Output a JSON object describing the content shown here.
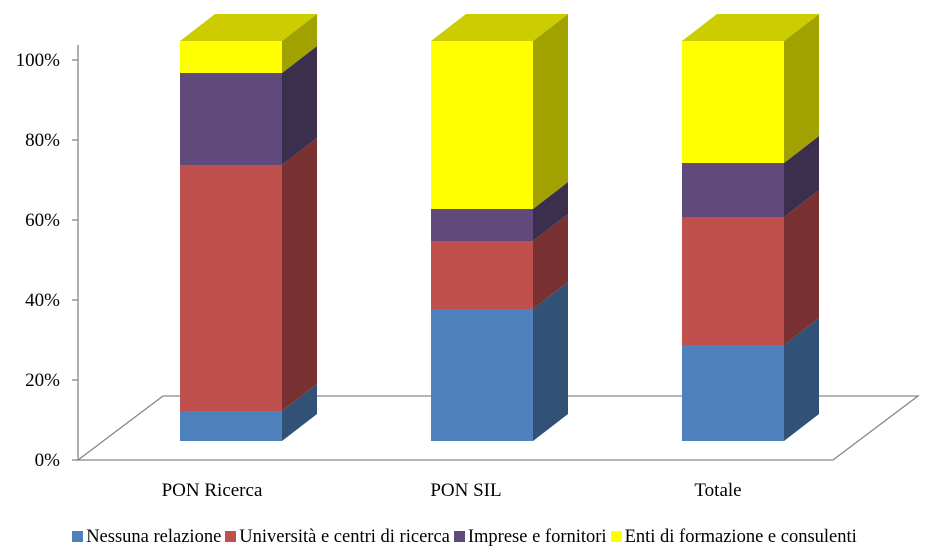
{
  "chart_data": {
    "type": "bar",
    "stacked": true,
    "percent": true,
    "three_d": true,
    "categories": [
      "PON Ricerca",
      "PON SIL",
      "Totale"
    ],
    "series": [
      {
        "name": "Nessuna relazione",
        "color": "#4F81BD",
        "values": [
          7.5,
          33,
          24
        ]
      },
      {
        "name": "Università e centri di ricerca",
        "color": "#C0504D",
        "values": [
          61.5,
          17,
          32
        ]
      },
      {
        "name": "Imprese e fornitori",
        "color": "#604A7B",
        "values": [
          23,
          8,
          13.5
        ]
      },
      {
        "name": "Enti di formazione e consulenti",
        "color": "#FFFF00",
        "values": [
          8,
          42,
          30.5
        ]
      }
    ],
    "y_ticks": [
      "0%",
      "20%",
      "40%",
      "60%",
      "80%",
      "100%"
    ],
    "ylim": [
      0,
      100
    ],
    "grid": false,
    "legend_position": "bottom"
  }
}
